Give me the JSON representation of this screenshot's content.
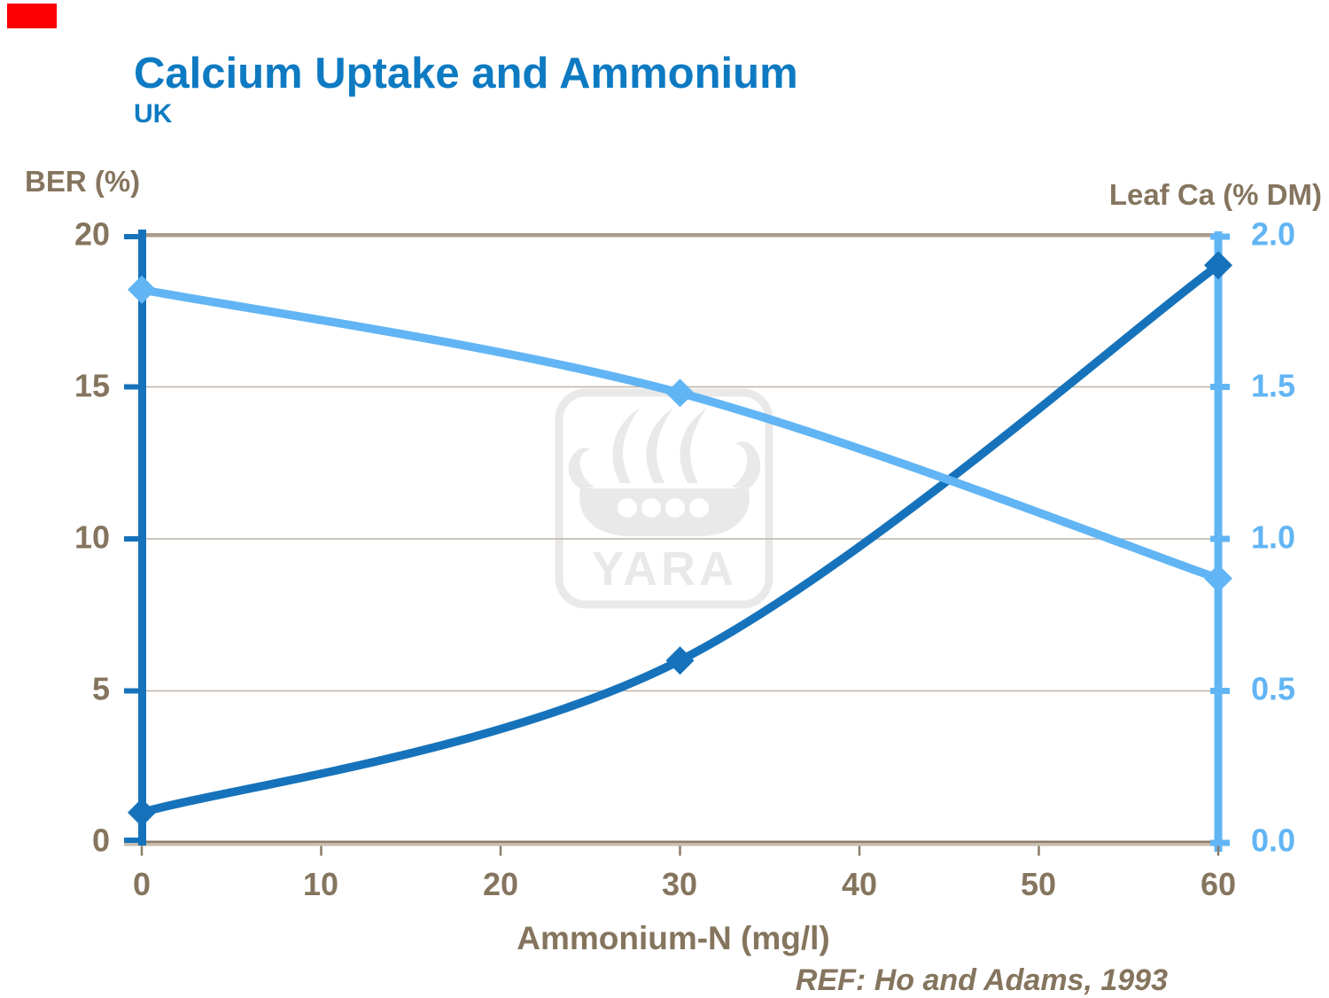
{
  "slide": {
    "title": "Calcium Uptake and Ammonium",
    "subtitle": "UK",
    "reference": "REF: Ho and Adams, 1993"
  },
  "watermark": {
    "text": "YARA"
  },
  "colors": {
    "title_blue": "#0d7ac2",
    "ber_line_blue": "#1673bb",
    "leaf_ca_light_blue": "#62b5f4",
    "text_brown": "#85755e",
    "frame_tan": "#ab9d8b",
    "axis_dark_tan": "#8d7c68",
    "gridline": "#bcb3a6",
    "red_corner_marker": "#fa0000",
    "watermark_gray": "#e9e9e9"
  },
  "chart_data": {
    "type": "line",
    "x": [
      0,
      30,
      60
    ],
    "x_ticks": [
      "0",
      "10",
      "20",
      "30",
      "40",
      "50",
      "60"
    ],
    "xlabel": "Ammonium-N (mg/l)",
    "grid": true,
    "legend": "none",
    "left_axis": {
      "label": "BER (%)",
      "range": [
        0,
        20
      ],
      "ticks": [
        "20",
        "15",
        "10",
        "5",
        "0"
      ]
    },
    "right_axis": {
      "label": "Leaf Ca (% DM)",
      "range": [
        0,
        2
      ],
      "ticks": [
        "2.0",
        "1.5",
        "1.0",
        "0.5",
        "0.0"
      ]
    },
    "series": [
      {
        "name": "BER (%)",
        "axis": "left",
        "values": [
          1,
          6,
          19
        ],
        "color": "#1673bb",
        "marker": "diamond"
      },
      {
        "name": "Leaf Ca (% DM)",
        "axis": "right",
        "values": [
          1.82,
          1.48,
          0.87
        ],
        "color": "#62b5f4",
        "marker": "diamond"
      }
    ]
  }
}
